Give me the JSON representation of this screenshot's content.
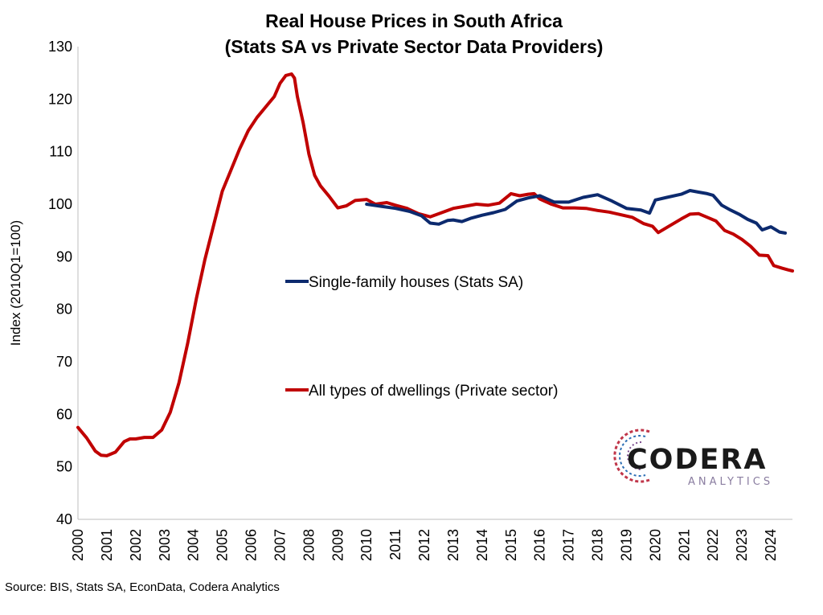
{
  "chart_data": {
    "type": "line",
    "title": [
      "Real House Prices in South Africa",
      "(Stats SA vs Private Sector Data Providers)"
    ],
    "ylabel": "Index (2010Q1=100)",
    "ylim": [
      40,
      130
    ],
    "yticks": [
      40,
      50,
      60,
      70,
      80,
      90,
      100,
      110,
      120,
      130
    ],
    "xlim": [
      2000,
      2024.75
    ],
    "xticks": [
      "2000",
      "2001",
      "2002",
      "2003",
      "2004",
      "2005",
      "2006",
      "2007",
      "2008",
      "2009",
      "2010",
      "2011",
      "2012",
      "2013",
      "2014",
      "2015",
      "2016",
      "2017",
      "2018",
      "2019",
      "2020",
      "2021",
      "2022",
      "2023",
      "2024"
    ],
    "grid": false,
    "legend_placement": "center",
    "series": [
      {
        "name": "Single-family houses (Stats SA)",
        "color": "#0c2a6e",
        "x": [
          2010.0,
          2010.5,
          2011.0,
          2011.5,
          2011.9,
          2012.2,
          2012.5,
          2012.8,
          2013.0,
          2013.3,
          2013.6,
          2014.0,
          2014.4,
          2014.8,
          2015.2,
          2015.6,
          2016.0,
          2016.5,
          2017.0,
          2017.5,
          2018.0,
          2018.5,
          2019.0,
          2019.5,
          2019.8,
          2020.0,
          2020.4,
          2020.9,
          2021.2,
          2021.5,
          2021.8,
          2022.0,
          2022.3,
          2022.6,
          2022.9,
          2023.2,
          2023.5,
          2023.7,
          2024.0,
          2024.3,
          2024.5
        ],
        "y": [
          100.0,
          99.6,
          99.2,
          98.6,
          97.8,
          96.4,
          96.2,
          96.9,
          97.0,
          96.7,
          97.3,
          97.9,
          98.4,
          99.0,
          100.6,
          101.2,
          101.6,
          100.4,
          100.4,
          101.3,
          101.8,
          100.6,
          99.2,
          98.9,
          98.3,
          100.8,
          101.3,
          101.9,
          102.6,
          102.3,
          102.0,
          101.7,
          99.8,
          98.9,
          98.1,
          97.1,
          96.4,
          95.1,
          95.7,
          94.7,
          94.5
        ]
      },
      {
        "name": "All types of dwellings (Private sector)",
        "color": "#c00000",
        "x": [
          2000.0,
          2000.3,
          2000.6,
          2000.8,
          2001.0,
          2001.3,
          2001.6,
          2001.8,
          2002.0,
          2002.3,
          2002.6,
          2002.9,
          2003.2,
          2003.5,
          2003.8,
          2004.1,
          2004.4,
          2004.7,
          2005.0,
          2005.3,
          2005.6,
          2005.9,
          2006.2,
          2006.5,
          2006.8,
          2007.0,
          2007.2,
          2007.4,
          2007.5,
          2007.6,
          2007.8,
          2008.0,
          2008.2,
          2008.4,
          2008.7,
          2009.0,
          2009.3,
          2009.6,
          2010.0,
          2010.3,
          2010.7,
          2011.0,
          2011.4,
          2011.8,
          2012.2,
          2012.6,
          2013.0,
          2013.4,
          2013.8,
          2014.2,
          2014.6,
          2015.0,
          2015.3,
          2015.6,
          2015.8,
          2016.0,
          2016.4,
          2016.8,
          2017.2,
          2017.6,
          2018.0,
          2018.4,
          2018.8,
          2019.2,
          2019.6,
          2019.9,
          2020.1,
          2020.5,
          2020.9,
          2021.2,
          2021.5,
          2021.8,
          2022.1,
          2022.4,
          2022.7,
          2023.0,
          2023.3,
          2023.6,
          2023.9,
          2024.1,
          2024.4,
          2024.6,
          2024.75
        ],
        "y": [
          57.5,
          55.5,
          53.0,
          52.2,
          52.1,
          52.8,
          54.8,
          55.3,
          55.3,
          55.6,
          55.6,
          57.0,
          60.4,
          66.0,
          73.5,
          82.0,
          89.5,
          96.0,
          102.5,
          106.5,
          110.5,
          114.0,
          116.5,
          118.5,
          120.5,
          123.0,
          124.5,
          124.8,
          124.0,
          120.5,
          115.5,
          109.5,
          105.5,
          103.5,
          101.5,
          99.3,
          99.7,
          100.7,
          100.9,
          100.0,
          100.3,
          99.8,
          99.2,
          98.2,
          97.6,
          98.4,
          99.2,
          99.6,
          100.0,
          99.8,
          100.2,
          102.0,
          101.6,
          101.9,
          102.0,
          101.0,
          100.0,
          99.3,
          99.3,
          99.2,
          98.8,
          98.5,
          98.0,
          97.5,
          96.3,
          95.8,
          94.6,
          95.9,
          97.2,
          98.1,
          98.2,
          97.5,
          96.8,
          95.0,
          94.3,
          93.3,
          92.0,
          90.3,
          90.2,
          88.3,
          87.8,
          87.5,
          87.3
        ]
      }
    ]
  },
  "source": "Source: BIS, Stats SA, EconData, Codera Analytics",
  "logo": {
    "word": "CODERA",
    "sub": "ANALYTICS"
  }
}
